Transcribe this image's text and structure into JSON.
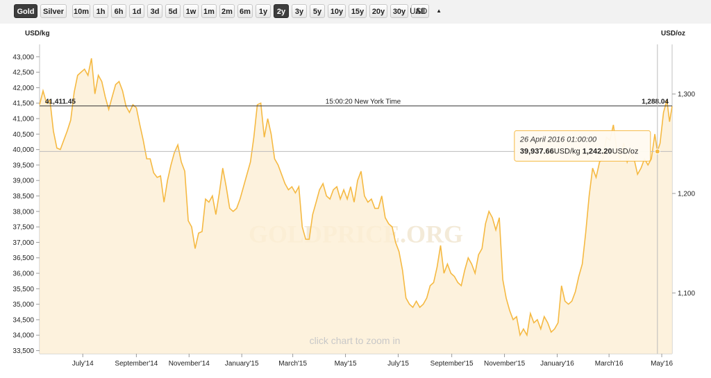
{
  "toolbar": {
    "metals": [
      "Gold",
      "Silver"
    ],
    "ranges": [
      "10m",
      "1h",
      "6h",
      "1d",
      "3d",
      "5d",
      "1w",
      "1m",
      "2m",
      "6m",
      "1y",
      "2y",
      "3y",
      "5y",
      "10y",
      "15y",
      "20y",
      "30y",
      "All"
    ],
    "active_metal": "Gold",
    "active_range": "2y",
    "currency": "USD"
  },
  "chart_data": {
    "type": "area",
    "left_unit": "USD/kg",
    "right_unit": "USD/oz",
    "y_left_ticks": [
      33500,
      34000,
      34500,
      35000,
      35500,
      36000,
      36500,
      37000,
      37500,
      38000,
      38500,
      39000,
      39500,
      40000,
      40500,
      41000,
      41500,
      42000,
      42500,
      43000
    ],
    "y_left_labels": [
      "33,500",
      "34,000",
      "34,500",
      "35,000",
      "35,500",
      "36,000",
      "36,500",
      "37,000",
      "37,500",
      "38,000",
      "38,500",
      "39,000",
      "39,500",
      "40,000",
      "40,500",
      "41,000",
      "41,500",
      "42,000",
      "42,500",
      "43,000"
    ],
    "ylim_left": [
      33400,
      43400
    ],
    "y_right_ticks": [
      1100,
      1200,
      1300
    ],
    "y_right_labels": [
      "1,100",
      "1,200",
      "1,300"
    ],
    "x_ticks": [
      "2014-07-01",
      "2014-09-01",
      "2014-11-01",
      "2015-01-01",
      "2015-03-01",
      "2015-05-01",
      "2015-07-01",
      "2015-09-01",
      "2015-11-01",
      "2016-01-01",
      "2016-03-01",
      "2016-05-01"
    ],
    "x_labels": [
      "July'14",
      "September'14",
      "November'14",
      "January'15",
      "March'15",
      "May'15",
      "July'15",
      "September'15",
      "November'15",
      "January'16",
      "March'16",
      "May'16"
    ],
    "xlim": [
      "2014-05-12",
      "2016-05-13"
    ],
    "series": [
      {
        "color": "#f5b942",
        "points": [
          [
            "2014-05-12",
            41450
          ],
          [
            "2014-05-16",
            41900
          ],
          [
            "2014-05-20",
            41500
          ],
          [
            "2014-05-24",
            41600
          ],
          [
            "2014-05-28",
            40600
          ],
          [
            "2014-06-01",
            40050
          ],
          [
            "2014-06-05",
            40000
          ],
          [
            "2014-06-09",
            40300
          ],
          [
            "2014-06-13",
            40600
          ],
          [
            "2014-06-17",
            40950
          ],
          [
            "2014-06-21",
            41850
          ],
          [
            "2014-06-25",
            42400
          ],
          [
            "2014-06-29",
            42500
          ],
          [
            "2014-07-03",
            42600
          ],
          [
            "2014-07-07",
            42400
          ],
          [
            "2014-07-11",
            42950
          ],
          [
            "2014-07-15",
            41800
          ],
          [
            "2014-07-19",
            42400
          ],
          [
            "2014-07-23",
            42200
          ],
          [
            "2014-07-27",
            41700
          ],
          [
            "2014-07-31",
            41300
          ],
          [
            "2014-08-04",
            41700
          ],
          [
            "2014-08-08",
            42100
          ],
          [
            "2014-08-12",
            42200
          ],
          [
            "2014-08-16",
            41900
          ],
          [
            "2014-08-20",
            41400
          ],
          [
            "2014-08-24",
            41200
          ],
          [
            "2014-08-28",
            41450
          ],
          [
            "2014-09-01",
            41350
          ],
          [
            "2014-09-05",
            40800
          ],
          [
            "2014-09-09",
            40300
          ],
          [
            "2014-09-13",
            39700
          ],
          [
            "2014-09-17",
            39700
          ],
          [
            "2014-09-21",
            39250
          ],
          [
            "2014-09-25",
            39100
          ],
          [
            "2014-09-29",
            39150
          ],
          [
            "2014-10-03",
            38300
          ],
          [
            "2014-10-07",
            39000
          ],
          [
            "2014-10-11",
            39500
          ],
          [
            "2014-10-15",
            39900
          ],
          [
            "2014-10-19",
            40150
          ],
          [
            "2014-10-23",
            39600
          ],
          [
            "2014-10-27",
            39300
          ],
          [
            "2014-10-31",
            37700
          ],
          [
            "2014-11-04",
            37500
          ],
          [
            "2014-11-08",
            36800
          ],
          [
            "2014-11-12",
            37300
          ],
          [
            "2014-11-16",
            37350
          ],
          [
            "2014-11-20",
            38400
          ],
          [
            "2014-11-24",
            38300
          ],
          [
            "2014-11-28",
            38500
          ],
          [
            "2014-12-02",
            37900
          ],
          [
            "2014-12-06",
            38600
          ],
          [
            "2014-12-10",
            39400
          ],
          [
            "2014-12-14",
            38800
          ],
          [
            "2014-12-18",
            38100
          ],
          [
            "2014-12-22",
            38000
          ],
          [
            "2014-12-26",
            38100
          ],
          [
            "2014-12-30",
            38400
          ],
          [
            "2015-01-03",
            38800
          ],
          [
            "2015-01-07",
            39200
          ],
          [
            "2015-01-11",
            39600
          ],
          [
            "2015-01-15",
            40400
          ],
          [
            "2015-01-19",
            41450
          ],
          [
            "2015-01-23",
            41500
          ],
          [
            "2015-01-27",
            40400
          ],
          [
            "2015-01-31",
            41000
          ],
          [
            "2015-02-04",
            40500
          ],
          [
            "2015-02-08",
            39700
          ],
          [
            "2015-02-12",
            39500
          ],
          [
            "2015-02-16",
            39200
          ],
          [
            "2015-02-20",
            38900
          ],
          [
            "2015-02-24",
            38700
          ],
          [
            "2015-02-28",
            38800
          ],
          [
            "2015-03-04",
            38600
          ],
          [
            "2015-03-08",
            38800
          ],
          [
            "2015-03-12",
            37500
          ],
          [
            "2015-03-16",
            37100
          ],
          [
            "2015-03-20",
            37100
          ],
          [
            "2015-03-24",
            37900
          ],
          [
            "2015-03-28",
            38300
          ],
          [
            "2015-04-01",
            38700
          ],
          [
            "2015-04-05",
            38900
          ],
          [
            "2015-04-09",
            38500
          ],
          [
            "2015-04-13",
            38400
          ],
          [
            "2015-04-17",
            38700
          ],
          [
            "2015-04-21",
            38800
          ],
          [
            "2015-04-25",
            38400
          ],
          [
            "2015-04-29",
            38700
          ],
          [
            "2015-05-03",
            38400
          ],
          [
            "2015-05-07",
            38800
          ],
          [
            "2015-05-11",
            38300
          ],
          [
            "2015-05-15",
            39000
          ],
          [
            "2015-05-19",
            39300
          ],
          [
            "2015-05-23",
            38500
          ],
          [
            "2015-05-27",
            38300
          ],
          [
            "2015-05-31",
            38400
          ],
          [
            "2015-06-04",
            38100
          ],
          [
            "2015-06-08",
            38100
          ],
          [
            "2015-06-12",
            38500
          ],
          [
            "2015-06-16",
            37800
          ],
          [
            "2015-06-20",
            37600
          ],
          [
            "2015-06-24",
            37500
          ],
          [
            "2015-06-28",
            37000
          ],
          [
            "2015-07-02",
            36700
          ],
          [
            "2015-07-06",
            36100
          ],
          [
            "2015-07-10",
            35200
          ],
          [
            "2015-07-14",
            35000
          ],
          [
            "2015-07-18",
            34900
          ],
          [
            "2015-07-22",
            35100
          ],
          [
            "2015-07-26",
            34900
          ],
          [
            "2015-07-30",
            35000
          ],
          [
            "2015-08-03",
            35200
          ],
          [
            "2015-08-07",
            35600
          ],
          [
            "2015-08-11",
            35700
          ],
          [
            "2015-08-15",
            36200
          ],
          [
            "2015-08-19",
            36900
          ],
          [
            "2015-08-23",
            36000
          ],
          [
            "2015-08-27",
            36300
          ],
          [
            "2015-08-31",
            36000
          ],
          [
            "2015-09-04",
            35900
          ],
          [
            "2015-09-08",
            35700
          ],
          [
            "2015-09-12",
            35600
          ],
          [
            "2015-09-16",
            36100
          ],
          [
            "2015-09-20",
            36500
          ],
          [
            "2015-09-24",
            36300
          ],
          [
            "2015-09-28",
            36000
          ],
          [
            "2015-10-02",
            36600
          ],
          [
            "2015-10-06",
            36800
          ],
          [
            "2015-10-10",
            37600
          ],
          [
            "2015-10-14",
            38000
          ],
          [
            "2015-10-18",
            37800
          ],
          [
            "2015-10-22",
            37400
          ],
          [
            "2015-10-26",
            37800
          ],
          [
            "2015-10-30",
            35800
          ],
          [
            "2015-11-03",
            35200
          ],
          [
            "2015-11-07",
            34800
          ],
          [
            "2015-11-11",
            34500
          ],
          [
            "2015-11-15",
            34600
          ],
          [
            "2015-11-19",
            34000
          ],
          [
            "2015-11-23",
            34200
          ],
          [
            "2015-11-27",
            34000
          ],
          [
            "2015-12-01",
            34700
          ],
          [
            "2015-12-05",
            34400
          ],
          [
            "2015-12-09",
            34500
          ],
          [
            "2015-12-13",
            34200
          ],
          [
            "2015-12-17",
            34600
          ],
          [
            "2015-12-21",
            34400
          ],
          [
            "2015-12-25",
            34100
          ],
          [
            "2015-12-29",
            34200
          ],
          [
            "2016-01-02",
            34400
          ],
          [
            "2016-01-06",
            35600
          ],
          [
            "2016-01-10",
            35100
          ],
          [
            "2016-01-14",
            35000
          ],
          [
            "2016-01-18",
            35100
          ],
          [
            "2016-01-22",
            35400
          ],
          [
            "2016-01-26",
            35900
          ],
          [
            "2016-01-30",
            36300
          ],
          [
            "2016-02-03",
            37300
          ],
          [
            "2016-02-07",
            38500
          ],
          [
            "2016-02-11",
            39400
          ],
          [
            "2016-02-15",
            39100
          ],
          [
            "2016-02-19",
            39600
          ],
          [
            "2016-02-23",
            39700
          ],
          [
            "2016-02-27",
            40400
          ],
          [
            "2016-03-02",
            40300
          ],
          [
            "2016-03-06",
            40800
          ],
          [
            "2016-03-10",
            40000
          ],
          [
            "2016-03-14",
            39700
          ],
          [
            "2016-03-18",
            40200
          ],
          [
            "2016-03-22",
            39600
          ],
          [
            "2016-03-26",
            39900
          ],
          [
            "2016-03-30",
            39700
          ],
          [
            "2016-04-03",
            39200
          ],
          [
            "2016-04-07",
            39400
          ],
          [
            "2016-04-11",
            39700
          ],
          [
            "2016-04-15",
            39500
          ],
          [
            "2016-04-19",
            39700
          ],
          [
            "2016-04-23",
            40500
          ],
          [
            "2016-04-26",
            39937.66
          ],
          [
            "2016-04-29",
            40200
          ],
          [
            "2016-05-03",
            41200
          ],
          [
            "2016-05-07",
            41600
          ],
          [
            "2016-05-10",
            40900
          ],
          [
            "2016-05-13",
            41400
          ]
        ]
      }
    ],
    "current": {
      "kg_label": "41,411.45",
      "oz_label": "1,288.04",
      "value": 41411.45,
      "time_label": "15:00:20 New York Time"
    },
    "hover": {
      "date": "2016-04-26",
      "value": 39937.66,
      "date_label": "26 April 2016 01:00:00",
      "kg_value": "39,937.66",
      "kg_unit": "USD/kg",
      "oz_value": "1,242.20",
      "oz_unit": "USD/oz"
    },
    "hint": "click chart to zoom in",
    "watermark": "GOLDPRICE.ORG"
  }
}
